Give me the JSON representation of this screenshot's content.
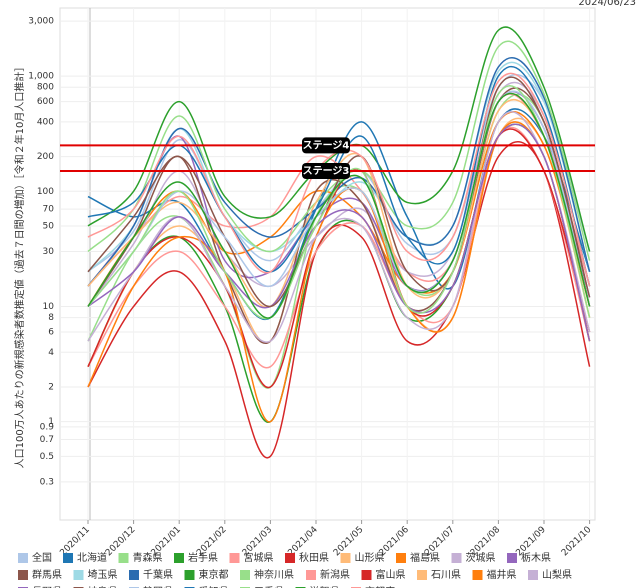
{
  "chart_data": {
    "type": "line",
    "date": "2024/06/23",
    "y_label": "人口100万人あたりの新規感染者数推定値（過去７日間の増加）［令和２年10月人口推計］",
    "log_y": true,
    "grid": true,
    "legend": "bottom",
    "categories": [
      "2020/11",
      "2020/12",
      "2021/01",
      "2021/02",
      "2021/03",
      "2021/04",
      "2021/05",
      "2021/06",
      "2021/07",
      "2021/08",
      "2021/09",
      "2021/10"
    ],
    "ylim": [
      0.14,
      3900
    ],
    "yticks": [
      0.3,
      0.5,
      0.7,
      0.9,
      1,
      2,
      4,
      6,
      8,
      10,
      30,
      50,
      70,
      100,
      200,
      400,
      600,
      800,
      {
        "value": 1000,
        "label": "1,000"
      },
      {
        "value": 3000,
        "label": "3,000"
      }
    ],
    "stages": [
      {
        "label": "ステージ4",
        "value": 250
      },
      {
        "label": "ステージ3",
        "value": 150
      }
    ],
    "stage_color": "#e00000",
    "series": [
      {
        "name": "全国",
        "color": "#aec7e8",
        "values": [
          20,
          45,
          280,
          60,
          25,
          70,
          150,
          35,
          40,
          800,
          600,
          30
        ]
      },
      {
        "name": "北海道",
        "color": "#1f77b4",
        "values": [
          90,
          60,
          80,
          20,
          8,
          70,
          400,
          60,
          15,
          400,
          300,
          20
        ]
      },
      {
        "name": "青森県",
        "color": "#98df8a",
        "values": [
          5,
          30,
          60,
          15,
          2,
          60,
          100,
          15,
          20,
          500,
          400,
          10
        ]
      },
      {
        "name": "岩手県",
        "color": "#2ca02c",
        "values": [
          3,
          20,
          40,
          10,
          1,
          30,
          50,
          8,
          15,
          300,
          200,
          5
        ]
      },
      {
        "name": "宮城県",
        "color": "#ff9896",
        "values": [
          15,
          40,
          90,
          50,
          60,
          200,
          100,
          20,
          25,
          600,
          300,
          15
        ]
      },
      {
        "name": "秋田県",
        "color": "#d62728",
        "values": [
          2,
          10,
          20,
          5,
          0.5,
          30,
          40,
          5,
          10,
          200,
          150,
          3
        ]
      },
      {
        "name": "山形県",
        "color": "#ffbb78",
        "values": [
          3,
          20,
          50,
          20,
          5,
          100,
          80,
          10,
          8,
          300,
          250,
          8
        ]
      },
      {
        "name": "福島県",
        "color": "#ff7f0e",
        "values": [
          10,
          40,
          100,
          30,
          40,
          100,
          60,
          15,
          20,
          400,
          250,
          10
        ]
      },
      {
        "name": "茨城県",
        "color": "#c5b0d5",
        "values": [
          10,
          35,
          150,
          30,
          15,
          40,
          70,
          20,
          30,
          700,
          450,
          15
        ]
      },
      {
        "name": "栃木県",
        "color": "#9467bd",
        "values": [
          15,
          50,
          300,
          25,
          20,
          60,
          80,
          15,
          25,
          600,
          350,
          12
        ]
      },
      {
        "name": "群馬県",
        "color": "#8c564b",
        "values": [
          10,
          40,
          200,
          20,
          5,
          100,
          80,
          10,
          20,
          600,
          400,
          10
        ]
      },
      {
        "name": "埼玉県",
        "color": "#9edae5",
        "values": [
          20,
          50,
          350,
          60,
          30,
          60,
          120,
          40,
          50,
          1100,
          600,
          20
        ]
      },
      {
        "name": "千葉県",
        "color": "#2b6cb0",
        "values": [
          15,
          50,
          350,
          80,
          40,
          70,
          130,
          40,
          50,
          1200,
          650,
          20
        ]
      },
      {
        "name": "東京都",
        "color": "#2ca02c",
        "values": [
          50,
          100,
          600,
          90,
          60,
          150,
          250,
          80,
          150,
          2500,
          800,
          30
        ]
      },
      {
        "name": "神奈川県",
        "color": "#98df8a",
        "values": [
          30,
          70,
          450,
          70,
          30,
          80,
          150,
          50,
          80,
          1800,
          700,
          25
        ]
      },
      {
        "name": "新潟県",
        "color": "#ff9896",
        "values": [
          3,
          15,
          30,
          10,
          3,
          30,
          50,
          10,
          10,
          300,
          150,
          5
        ]
      },
      {
        "name": "富山県",
        "color": "#d62728",
        "values": [
          3,
          20,
          40,
          15,
          2,
          40,
          150,
          10,
          15,
          300,
          150,
          6
        ]
      },
      {
        "name": "石川県",
        "color": "#ffbb78",
        "values": [
          15,
          40,
          80,
          30,
          10,
          80,
          200,
          15,
          20,
          500,
          300,
          8
        ]
      },
      {
        "name": "福井県",
        "color": "#ff7f0e",
        "values": [
          2,
          15,
          40,
          20,
          1,
          40,
          100,
          10,
          8,
          300,
          200,
          5
        ]
      },
      {
        "name": "山梨県",
        "color": "#c5b0d5",
        "values": [
          5,
          20,
          60,
          15,
          5,
          40,
          50,
          8,
          10,
          400,
          200,
          6
        ]
      },
      {
        "name": "長野県",
        "color": "#9467bd",
        "values": [
          10,
          20,
          60,
          20,
          10,
          50,
          60,
          10,
          15,
          300,
          200,
          5
        ]
      },
      {
        "name": "岐阜県",
        "color": "#8c564b",
        "values": [
          20,
          60,
          200,
          40,
          10,
          50,
          200,
          20,
          20,
          800,
          400,
          12
        ]
      },
      {
        "name": "静岡県",
        "color": "#aec7e8",
        "values": [
          10,
          30,
          100,
          40,
          15,
          60,
          100,
          15,
          25,
          600,
          350,
          10
        ]
      },
      {
        "name": "愛知県",
        "color": "#1f77b4",
        "values": [
          60,
          80,
          250,
          60,
          20,
          70,
          300,
          40,
          30,
          1000,
          500,
          15
        ]
      },
      {
        "name": "三重県",
        "color": "#98df8a",
        "values": [
          10,
          30,
          100,
          20,
          8,
          50,
          150,
          10,
          20,
          700,
          300,
          8
        ]
      },
      {
        "name": "滋賀県",
        "color": "#2ca02c",
        "values": [
          10,
          40,
          120,
          30,
          8,
          60,
          130,
          15,
          25,
          600,
          300,
          10
        ]
      },
      {
        "name": "京都府",
        "color": "#ff9896",
        "values": [
          40,
          70,
          300,
          60,
          20,
          150,
          200,
          30,
          40,
          900,
          450,
          15
        ]
      }
    ]
  }
}
